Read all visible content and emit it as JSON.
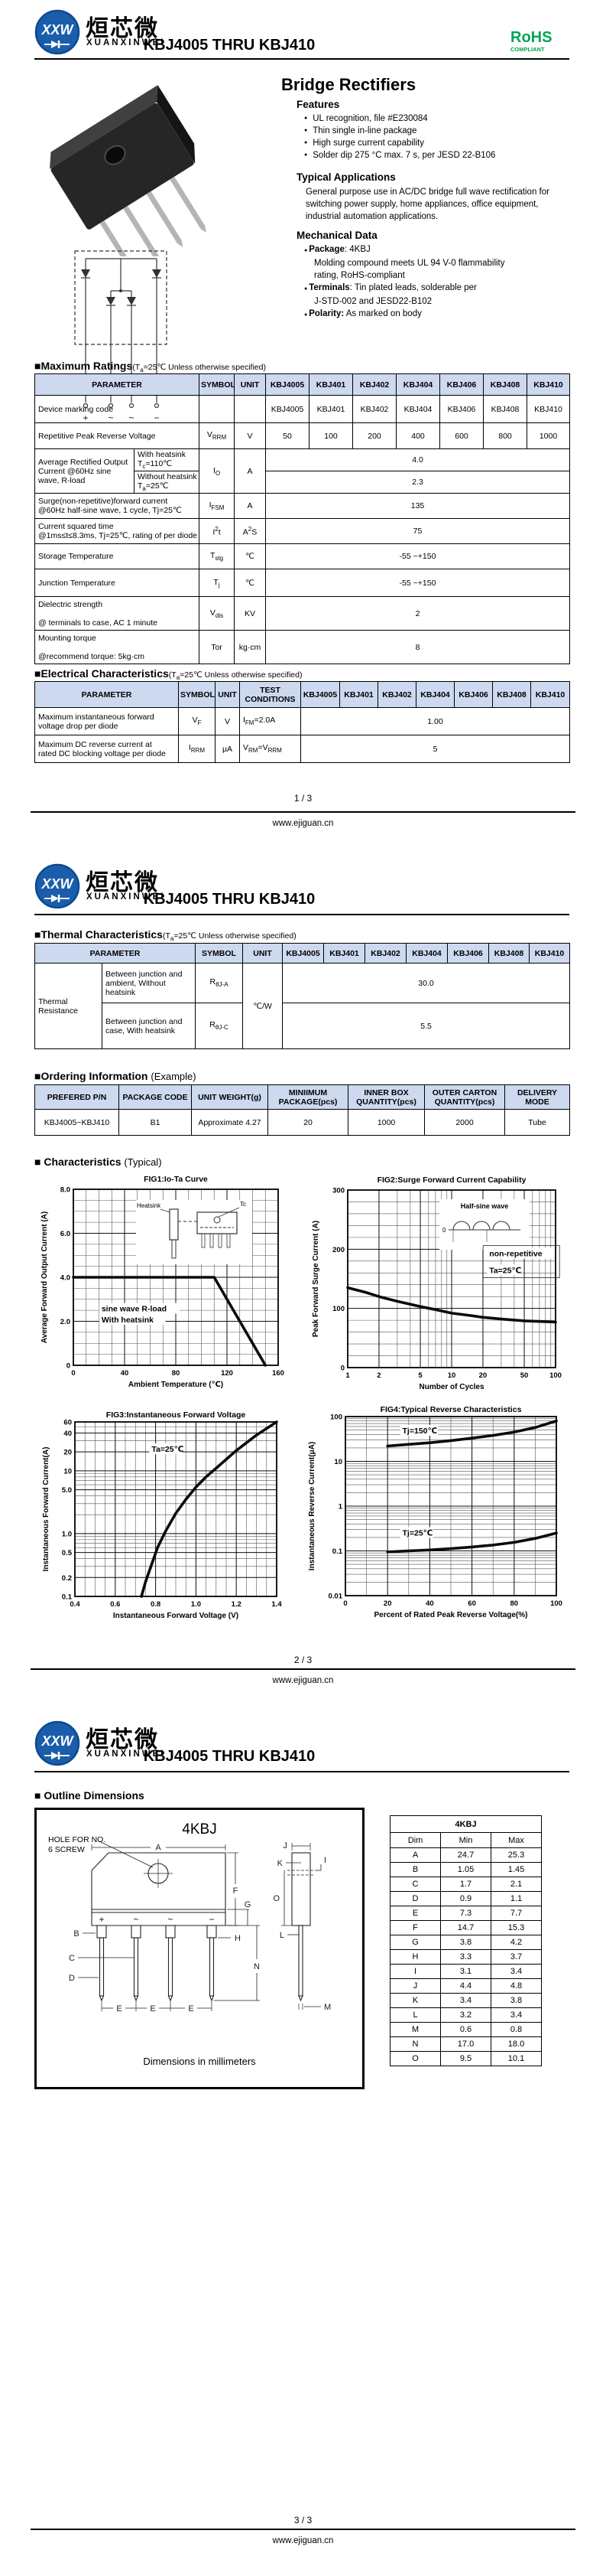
{
  "header": {
    "logo_abbr": "XXW",
    "logo_cn": "烜芯微",
    "logo_en": "XUANXINWEI",
    "title": "KBJ4005 THRU KBJ410",
    "rohs_line1": "RoHS",
    "rohs_line2": "COMPLIANT"
  },
  "footer": {
    "page1": "1 / 3",
    "page2": "2 / 3",
    "page3": "3 / 3",
    "site": "www.ejiguan.cn"
  },
  "product": {
    "name": "Bridge Rectifiers",
    "features_title": "Features",
    "features": [
      "UL recognition, file #E230084",
      "Thin single in-line package",
      "High surge current capability",
      "Solder dip 275 °C max. 7 s, per JESD 22-B106"
    ],
    "apps_title": "Typical  Applications",
    "apps_text": "General purpose use in AC/DC bridge full wave rectification for switching power supply, home appliances, office equipment, industrial automation applications.",
    "mech_title": "Mechanical Data",
    "mech_lines": [
      {
        "b": "Package",
        "r": ": 4KBJ",
        "dot": true
      },
      {
        "b": "",
        "r": "Molding compound meets UL 94 V-0 flammability",
        "dot": false
      },
      {
        "b": "",
        "r": "rating, RoHS-compliant",
        "dot": false
      },
      {
        "b": "Terminals",
        "r": ": Tin plated leads, solderable per",
        "dot": true
      },
      {
        "b": "",
        "r": "J-STD-002 and JESD22-B102",
        "dot": false
      },
      {
        "b": "Polarity:",
        "r": " As marked on body",
        "dot": true
      }
    ]
  },
  "schematic": {
    "terminals": [
      "+",
      "~",
      "~",
      "−"
    ]
  },
  "common": {
    "models": [
      "KBJ4005",
      "KBJ401",
      "KBJ402",
      "KBJ404",
      "KBJ406",
      "KBJ408",
      "KBJ410"
    ],
    "h_param": "PARAMETER",
    "h_sym": "SYMBOL",
    "h_unit": "UNIT",
    "h_test": "TEST CONDITIONS",
    "cond_pre": "(T",
    "cond_sub": "a",
    "cond_post": "=25℃ Unless otherwise specified)"
  },
  "max_ratings": {
    "title": "■Maximum Ratings",
    "rows": {
      "device": {
        "param": "Device marking code"
      },
      "vrrm": {
        "param": "Repetitive Peak Reverse Voltage",
        "sym_m": "V",
        "sym_s": "RRM",
        "unit": "V",
        "values": [
          "50",
          "100",
          "200",
          "400",
          "600",
          "800",
          "1000"
        ]
      },
      "io": {
        "param": "Average Rectified Output Current @60Hz sine wave, R-load",
        "s1a": "With heatsink",
        "s1b": "T",
        "s1c": "c",
        "s1d": "=110℃",
        "s2a": "Without heatsink",
        "s2b": "T",
        "s2c": "a",
        "s2d": "=25℃",
        "sym_m": "I",
        "sym_s": "O",
        "unit": "A",
        "v1": "4.0",
        "v2": "2.3"
      },
      "ifsm": {
        "p1": "Surge(non-repetitive)forward current",
        "p2": "@60Hz half-sine wave, 1 cycle, Tj=25℃",
        "sym_m": "I",
        "sym_s": "FSM",
        "unit": "A",
        "value": "135"
      },
      "i2t": {
        "p1": "Current squared time",
        "p2": "@1ms≤t≤8.3ms, Tj=25℃, rating of per diode",
        "sym_m": "I",
        "sym_p": "2",
        "sym_t": "t",
        "unit_m": "A",
        "unit_p": "2",
        "unit_t": "S",
        "value": "75"
      },
      "tstg": {
        "param": "Storage Temperature",
        "sym_m": "T",
        "sym_s": "stg",
        "unit": "℃",
        "value": "-55 ~+150"
      },
      "tj": {
        "param": "Junction Temperature",
        "sym_m": "T",
        "sym_s": "j",
        "unit": "℃",
        "value": "-55 ~+150"
      },
      "vdis": {
        "p1": "Dielectric strength",
        "p2": "@ terminals to case, AC 1 minute",
        "sym_m": "V",
        "sym_s": "dis",
        "unit": "KV",
        "value": "2"
      },
      "tor": {
        "p1": "Mounting torque",
        "p2": "@recommend torque: 5kg·cm",
        "sym": "Tor",
        "unit": "kg·cm",
        "value": "8"
      }
    }
  },
  "electrical": {
    "title": "■Electrical Characteristics",
    "rows": {
      "vf": {
        "p1": "Maximum instantaneous forward",
        "p2": "voltage drop per diode",
        "sym_m": "V",
        "sym_s": "F",
        "unit": "V",
        "tc_m": "I",
        "tc_s": "FM",
        "tc_r": "=2.0A",
        "value": "1.00"
      },
      "irrm": {
        "p1": "Maximum DC reverse current at",
        "p2": "rated DC blocking voltage per diode",
        "sym_m": "I",
        "sym_s": "RRM",
        "unit": "μA",
        "tc_m": "V",
        "tc_s": "RM",
        "tc_r": "=V",
        "tc_s2": "RRM",
        "value": "5"
      }
    }
  },
  "thermal": {
    "title": "■Thermal Characteristics",
    "group": "Thermal Resistance",
    "unit": "℃/W",
    "rows": {
      "rja": {
        "param": "Between junction and ambient, Without heatsink",
        "sym_m": "R",
        "sym_s": "θJ-A",
        "value": "30.0"
      },
      "rjc": {
        "param": "Between junction and case, With heatsink",
        "sym_m": "R",
        "sym_s": "θJ-C",
        "value": "5.5"
      }
    }
  },
  "ordering": {
    "title": "■Ordering Information",
    "suffix": "(Example)",
    "headers": [
      "PREFERED P/N",
      "PACKAGE CODE",
      "UNIT WEIGHT(g)",
      "MINIIMUM PACKAGE(pcs)",
      "INNER BOX QUANTITY(pcs)",
      "OUTER CARTON QUANTITY(pcs)",
      "DELIVERY MODE"
    ],
    "row": [
      "KBJ4005~KBJ410",
      "B1",
      "Approximate 4.27",
      "20",
      "1000",
      "2000",
      "Tube"
    ]
  },
  "characteristics": {
    "title": "■ Characteristics",
    "suffix": "(Typical)"
  },
  "outline": {
    "title": "■ Outline Dimensions",
    "pkg": "4KBJ",
    "hole_label_1": "HOLE FOR NO.",
    "hole_label_2": "6 SCREW",
    "note": "Dimensions in millimeters",
    "terminals": [
      "+",
      "~",
      "~",
      "−"
    ],
    "letters": {
      "A": "A",
      "B": "B",
      "C": "C",
      "D": "D",
      "E": "E",
      "F": "F",
      "G": "G",
      "H": "H",
      "I": "I",
      "J": "J",
      "K": "K",
      "L": "L",
      "M": "M",
      "N": "N",
      "O": "O"
    },
    "table": {
      "title": "4KBJ",
      "headers": [
        "Dim",
        "Min",
        "Max"
      ],
      "rows": [
        [
          "A",
          "24.7",
          "25.3"
        ],
        [
          "B",
          "1.05",
          "1.45"
        ],
        [
          "C",
          "1.7",
          "2.1"
        ],
        [
          "D",
          "0.9",
          "1.1"
        ],
        [
          "E",
          "7.3",
          "7.7"
        ],
        [
          "F",
          "14.7",
          "15.3"
        ],
        [
          "G",
          "3.8",
          "4.2"
        ],
        [
          "H",
          "3.3",
          "3.7"
        ],
        [
          "I",
          "3.1",
          "3.4"
        ],
        [
          "J",
          "4.4",
          "4.8"
        ],
        [
          "K",
          "3.4",
          "3.8"
        ],
        [
          "L",
          "3.2",
          "3.4"
        ],
        [
          "M",
          "0.6",
          "0.8"
        ],
        [
          "N",
          "17.0",
          "18.0"
        ],
        [
          "O",
          "9.5",
          "10.1"
        ]
      ]
    }
  },
  "chart_data": [
    {
      "id": "fig1",
      "type": "line",
      "title": "FIG1:Io-Ta Curve",
      "xlabel": "Ambient Temperature (℃)",
      "ylabel": "Average Forward Output Current (A)",
      "xscale": "linear",
      "xlim": [
        0,
        160
      ],
      "xticks": [
        0,
        40,
        80,
        120,
        160
      ],
      "xtick_labels": [
        "0",
        "40",
        "80",
        "120",
        "160"
      ],
      "xminor": 10,
      "yscale": "linear",
      "ylim": [
        0,
        8
      ],
      "ytick_vals": [
        0,
        2,
        4,
        6,
        8
      ],
      "ytick_labels": [
        "0",
        "2.0",
        "4.0",
        "6.0",
        "8.0"
      ],
      "yminor": 0.5,
      "series": [
        {
          "name": "Io with heatsink",
          "points": [
            [
              0,
              4
            ],
            [
              110,
              4
            ],
            [
              150,
              0
            ]
          ]
        }
      ],
      "annotations": [
        {
          "text": "sine wave R-load",
          "x": 22,
          "y": 2.45
        },
        {
          "text": "With heatsink",
          "x": 22,
          "y": 1.95
        }
      ],
      "inset_labels": [
        "Heatsink",
        "Tc"
      ]
    },
    {
      "id": "fig2",
      "type": "line",
      "title": "FIG2:Surge Forward Current Capability",
      "xlabel": "Number of Cycles",
      "ylabel": "Peak Forward Surge Current (A)",
      "xscale": "log",
      "xlim": [
        1,
        100
      ],
      "xticks": [
        1,
        2,
        5,
        10,
        20,
        50,
        100
      ],
      "xtick_labels": [
        "1",
        "2",
        "5",
        "10",
        "20",
        "50",
        "100"
      ],
      "yscale": "linear",
      "ylim": [
        0,
        300
      ],
      "ytick_vals": [
        0,
        100,
        200,
        300
      ],
      "ytick_labels": [
        "0",
        "100",
        "200",
        "300"
      ],
      "yminor": 20,
      "series": [
        {
          "name": "surge current",
          "points": [
            [
              1,
              135
            ],
            [
              1.5,
              127
            ],
            [
              2,
              120
            ],
            [
              3,
              112
            ],
            [
              5,
              103
            ],
            [
              7,
              98
            ],
            [
              10,
              92
            ],
            [
              15,
              88
            ],
            [
              20,
              85
            ],
            [
              30,
              82
            ],
            [
              50,
              79
            ],
            [
              70,
              78
            ],
            [
              100,
              77
            ]
          ]
        }
      ],
      "annotations": [
        {
          "text": "non-repetitive",
          "x": 23,
          "y": 188,
          "boxw": 100,
          "boxh": 42
        },
        {
          "text": "Ta=25℃",
          "x": 23,
          "y": 160
        }
      ],
      "inset_labels": [
        "Half-sine wave",
        "0"
      ]
    },
    {
      "id": "fig3",
      "type": "line",
      "title": "FIG3:Instantaneous Forward Voltage",
      "xlabel": "Instantaneous Forward Voltage (V)",
      "ylabel": "Instantaneous Forward Current(A)",
      "xscale": "linear",
      "xlim": [
        0.4,
        1.4
      ],
      "xticks": [
        0.4,
        0.6,
        0.8,
        1.0,
        1.2,
        1.4
      ],
      "xtick_labels": [
        "0.4",
        "0.6",
        "0.8",
        "1.0",
        "1.2",
        "1.4"
      ],
      "xminor": 0.05,
      "yscale": "log",
      "ylim": [
        0.1,
        60
      ],
      "ytick_vals": [
        0.1,
        0.2,
        0.5,
        1,
        5,
        10,
        20,
        40,
        60
      ],
      "ytick_labels": [
        "0.1",
        "0.2",
        "0.5",
        "1.0",
        "5.0",
        "10",
        "20",
        "40",
        "60"
      ],
      "series": [
        {
          "name": "VF Ta=25C",
          "points": [
            [
              0.73,
              0.1
            ],
            [
              0.75,
              0.17
            ],
            [
              0.78,
              0.32
            ],
            [
              0.81,
              0.6
            ],
            [
              0.85,
              1.1
            ],
            [
              0.9,
              2.1
            ],
            [
              0.95,
              3.5
            ],
            [
              1.0,
              5.5
            ],
            [
              1.05,
              8
            ],
            [
              1.1,
              11
            ],
            [
              1.2,
              21
            ],
            [
              1.3,
              37
            ],
            [
              1.4,
              60
            ]
          ]
        }
      ],
      "annotations": [
        {
          "text": "Ta=25℃",
          "x": 0.78,
          "y": 20
        }
      ]
    },
    {
      "id": "fig4",
      "type": "line",
      "title": "FIG4:Typical Reverse Characteristics",
      "xlabel": "Percent of Rated Peak Reverse Voltage(%)",
      "ylabel": "Instantaneous Reverse Current(μA)",
      "xscale": "linear",
      "xlim": [
        0,
        100
      ],
      "xticks": [
        0,
        20,
        40,
        60,
        80,
        100
      ],
      "xtick_labels": [
        "0",
        "20",
        "40",
        "60",
        "80",
        "100"
      ],
      "xminor": 10,
      "yscale": "log",
      "ylim": [
        0.01,
        100
      ],
      "ytick_vals": [
        0.01,
        0.1,
        1,
        10,
        100
      ],
      "ytick_labels": [
        "0.01",
        "0.1",
        "1",
        "10",
        "100"
      ],
      "series": [
        {
          "name": "Tj=150℃",
          "points": [
            [
              20,
              22
            ],
            [
              30,
              24
            ],
            [
              40,
              26
            ],
            [
              50,
              29
            ],
            [
              60,
              33
            ],
            [
              70,
              38
            ],
            [
              80,
              45
            ],
            [
              90,
              57
            ],
            [
              100,
              80
            ]
          ]
        },
        {
          "name": "Tj=25℃",
          "points": [
            [
              20,
              0.095
            ],
            [
              30,
              0.1
            ],
            [
              40,
              0.105
            ],
            [
              50,
              0.112
            ],
            [
              60,
              0.122
            ],
            [
              70,
              0.135
            ],
            [
              80,
              0.155
            ],
            [
              90,
              0.19
            ],
            [
              100,
              0.25
            ]
          ]
        }
      ],
      "annotations": [
        {
          "text": "Tj=150℃",
          "x": 27,
          "y": 42
        },
        {
          "text": "Tj=25℃",
          "x": 27,
          "y": 0.22
        }
      ]
    }
  ]
}
